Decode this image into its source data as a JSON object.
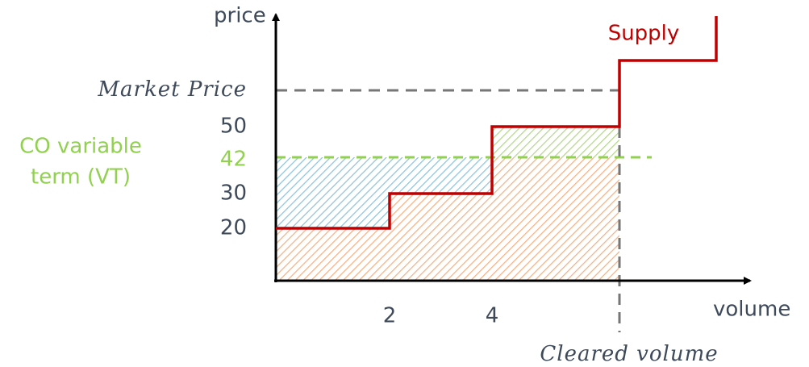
{
  "axes": {
    "y_label": "price",
    "x_label": "volume"
  },
  "y_labels": {
    "market_price": "Market Price",
    "ticks": [
      "50",
      "42",
      "30",
      "20"
    ]
  },
  "x_labels": {
    "ticks": [
      "2",
      "4"
    ],
    "cleared_volume": "Cleared volume"
  },
  "supply_label": "Supply",
  "vt_label": [
    "CO variable",
    "term (VT)"
  ]
}
